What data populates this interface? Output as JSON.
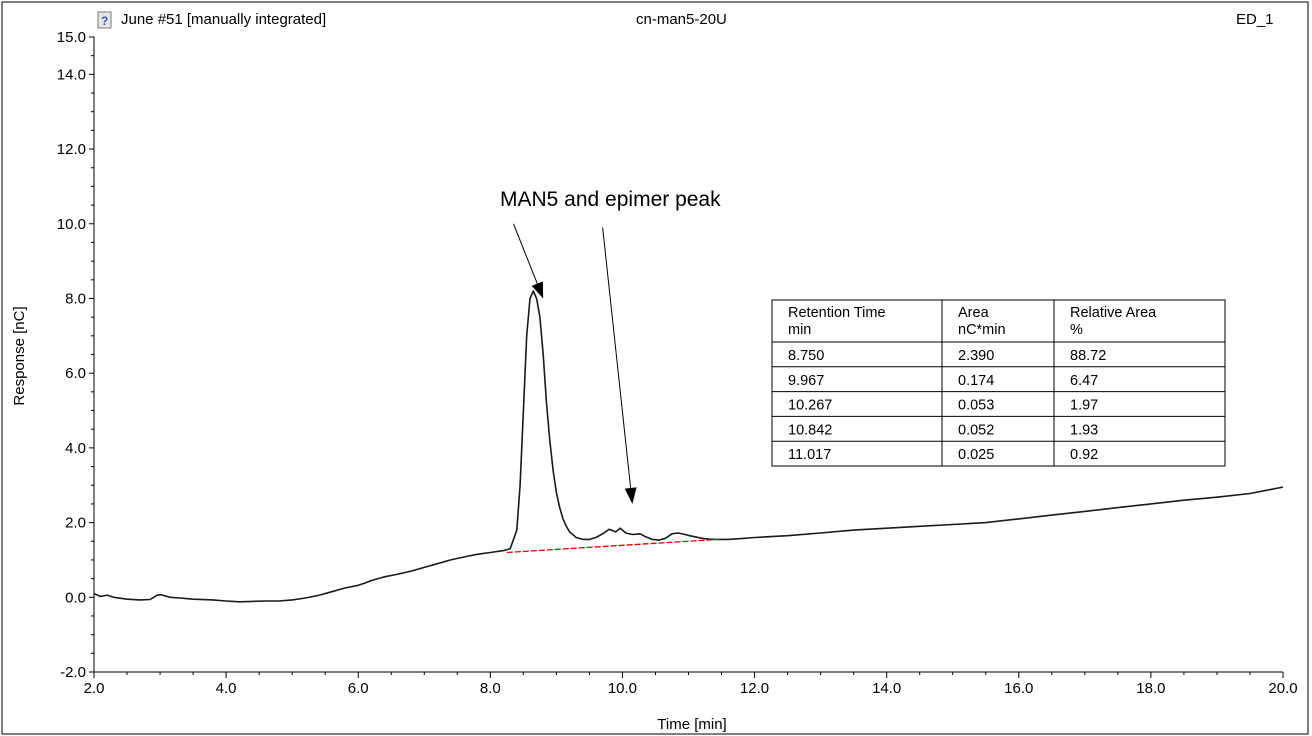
{
  "header": {
    "left_title": "June #51 [manually integrated]",
    "center_title": "cn-man5-20U",
    "right_title": "ED_1",
    "icon": "question-doc-icon"
  },
  "annotation": {
    "label": "MAN5 and epimer peak"
  },
  "results_table": {
    "headers": [
      [
        "Retention Time",
        "min"
      ],
      [
        "Area",
        "nC*min"
      ],
      [
        "Relative Area",
        "%"
      ]
    ],
    "rows": [
      [
        "8.750",
        "2.390",
        "88.72"
      ],
      [
        "9.967",
        "0.174",
        "6.47"
      ],
      [
        "10.267",
        "0.053",
        "1.97"
      ],
      [
        "10.842",
        "0.052",
        "1.93"
      ],
      [
        "11.017",
        "0.025",
        "0.92"
      ]
    ]
  },
  "colors": {
    "trace": "#1a1a1a",
    "baseline": "#e00000",
    "axis": "#000000"
  },
  "chart_data": {
    "type": "line",
    "title": "",
    "xlabel": "Time [min]",
    "ylabel": "Response [nC]",
    "xlim": [
      2.0,
      20.0
    ],
    "ylim": [
      -2.0,
      15.0
    ],
    "x_ticks": [
      "2.0",
      "4.0",
      "6.0",
      "8.0",
      "10.0",
      "12.0",
      "14.0",
      "16.0",
      "18.0",
      "20.0"
    ],
    "y_ticks": [
      "-2.0",
      "0.0",
      "2.0",
      "4.0",
      "6.0",
      "8.0",
      "10.0",
      "12.0",
      "14.0",
      "15.0"
    ],
    "grid": false,
    "series": [
      {
        "x": [
          2.0,
          2.1,
          2.2,
          2.3,
          2.5,
          2.7,
          2.85,
          2.95,
          3.0,
          3.05,
          3.15,
          3.3,
          3.5,
          3.8,
          4.0,
          4.2,
          4.4,
          4.6,
          4.8,
          5.0,
          5.2,
          5.4,
          5.6,
          5.8,
          6.0,
          6.1,
          6.2,
          6.4,
          6.6,
          6.8,
          7.0,
          7.2,
          7.4,
          7.6,
          7.8,
          8.0,
          8.2,
          8.3,
          8.4,
          8.45,
          8.5,
          8.55,
          8.6,
          8.65,
          8.7,
          8.75,
          8.8,
          8.85,
          8.9,
          8.95,
          9.0,
          9.05,
          9.1,
          9.15,
          9.2,
          9.3,
          9.4,
          9.5,
          9.6,
          9.7,
          9.8,
          9.9,
          9.967,
          10.05,
          10.15,
          10.267,
          10.35,
          10.45,
          10.55,
          10.65,
          10.75,
          10.842,
          10.95,
          11.017,
          11.1,
          11.2,
          11.3,
          11.4,
          11.5,
          11.6,
          11.8,
          12.0,
          12.5,
          13.0,
          13.5,
          14.0,
          14.5,
          15.0,
          15.5,
          16.0,
          16.5,
          17.0,
          17.5,
          18.0,
          18.5,
          19.0,
          19.5,
          20.0
        ],
        "y": [
          0.1,
          0.02,
          0.06,
          0.0,
          -0.05,
          -0.07,
          -0.06,
          0.05,
          0.07,
          0.05,
          0.0,
          -0.02,
          -0.05,
          -0.07,
          -0.1,
          -0.12,
          -0.11,
          -0.1,
          -0.1,
          -0.07,
          -0.02,
          0.05,
          0.15,
          0.25,
          0.32,
          0.38,
          0.45,
          0.55,
          0.62,
          0.7,
          0.8,
          0.9,
          1.0,
          1.08,
          1.15,
          1.2,
          1.25,
          1.3,
          1.8,
          3.0,
          5.0,
          7.0,
          8.0,
          8.2,
          8.0,
          7.5,
          6.5,
          5.2,
          4.2,
          3.4,
          2.8,
          2.4,
          2.1,
          1.9,
          1.75,
          1.6,
          1.55,
          1.55,
          1.6,
          1.7,
          1.82,
          1.75,
          1.85,
          1.72,
          1.68,
          1.7,
          1.62,
          1.55,
          1.53,
          1.58,
          1.7,
          1.72,
          1.68,
          1.65,
          1.62,
          1.58,
          1.56,
          1.55,
          1.55,
          1.55,
          1.57,
          1.6,
          1.65,
          1.72,
          1.8,
          1.85,
          1.9,
          1.95,
          2.0,
          2.1,
          2.2,
          2.3,
          2.4,
          2.5,
          2.6,
          2.68,
          2.78,
          2.95
        ]
      }
    ],
    "baseline": {
      "x": [
        8.25,
        11.45
      ],
      "y": [
        1.2,
        1.55
      ]
    },
    "annotation_arrows": [
      {
        "from": [
          8.35,
          10.0
        ],
        "to": [
          8.8,
          8.0
        ]
      },
      {
        "from": [
          9.7,
          9.9
        ],
        "to": [
          10.15,
          2.5
        ]
      }
    ]
  }
}
